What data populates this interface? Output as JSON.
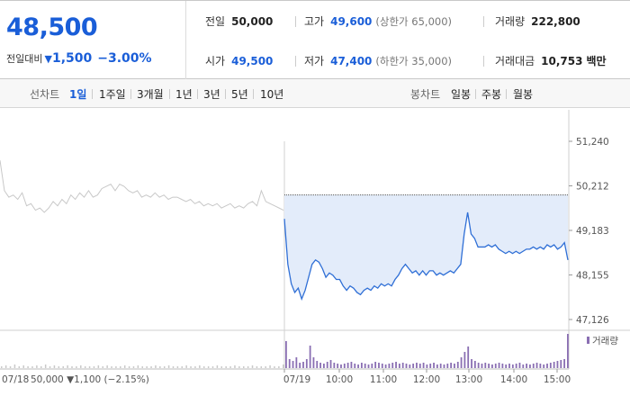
{
  "quote": {
    "price": "48,500",
    "change_label": "전일대비",
    "change_arrow": "▼",
    "change_value": "1,500",
    "change_pct": "−3.00%",
    "prev_close_label": "전일",
    "prev_close": "50,000",
    "high_label": "고가",
    "high": "49,600",
    "upper_limit": "(상한가 65,000)",
    "volume_label": "거래량",
    "volume": "222,800",
    "open_label": "시가",
    "open": "49,500",
    "low_label": "저가",
    "low": "47,400",
    "lower_limit": "(하한가 35,000)",
    "amount_label": "거래대금",
    "amount": "10,753",
    "amount_unit": "백만"
  },
  "toolbar": {
    "line_label": "선차트",
    "line_options": [
      "1일",
      "1주일",
      "3개월",
      "1년",
      "3년",
      "5년",
      "10년"
    ],
    "line_active": "1일",
    "candle_label": "봉차트",
    "candle_options": [
      "일봉",
      "주봉",
      "월봉"
    ]
  },
  "colors": {
    "accent": "#1a5ed8",
    "price_line": "#2f6fd6",
    "area_fill": "#e3ecfa",
    "prev_day_line": "#c8c8c8",
    "volume_today": "#8a6fb3",
    "volume_prev": "#c9c9c9"
  },
  "chart_data": {
    "type": "line",
    "y_ticks": [
      "51,240",
      "50,212",
      "49,183",
      "48,155",
      "47,126"
    ],
    "ylim": [
      47126,
      51240
    ],
    "x_ticks": [
      "07/19",
      "10:00",
      "11:00",
      "12:00",
      "13:00",
      "14:00",
      "15:00"
    ],
    "prev_day_label": "07/18",
    "prev_day_summary": "50,000 ▼1,100 (−2.15%)",
    "volume_legend": "거래량",
    "reference_price": 50000,
    "series": [
      {
        "values": [
          50800,
          50100,
          49950,
          50000,
          49900,
          50050,
          49750,
          49800,
          49650,
          49700,
          49600,
          49700,
          49850,
          49750,
          49900,
          49800,
          50000,
          49900,
          50050,
          49950,
          50100,
          49950,
          50000,
          50150,
          50200,
          50250,
          50100,
          50250,
          50200,
          50100,
          50050,
          50100,
          49950,
          50000,
          49950,
          50050,
          49950,
          50000,
          49900,
          49950,
          49950,
          49900,
          49850,
          49900,
          49800,
          49850,
          49750,
          49800,
          49750,
          49800,
          49700,
          49750,
          49800,
          49700,
          49750,
          49700,
          49800,
          49850,
          49750,
          50100,
          49850,
          49800,
          49750,
          49700,
          49650
        ]
      },
      {
        "values": [
          49450,
          48400,
          47950,
          47750,
          47850,
          47600,
          47800,
          48100,
          48400,
          48500,
          48450,
          48300,
          48100,
          48200,
          48150,
          48050,
          48050,
          47900,
          47800,
          47900,
          47850,
          47750,
          47700,
          47800,
          47850,
          47800,
          47900,
          47850,
          47950,
          47900,
          47950,
          47900,
          48050,
          48150,
          48300,
          48400,
          48300,
          48200,
          48250,
          48150,
          48250,
          48150,
          48250,
          48250,
          48150,
          48200,
          48150,
          48200,
          48250,
          48200,
          48300,
          48400,
          49100,
          49600,
          49100,
          49000,
          48800,
          48800,
          48800,
          48850,
          48800,
          48850,
          48750,
          48700,
          48650,
          48700,
          48650,
          48700,
          48650,
          48700,
          48750,
          48750,
          48800,
          48750,
          48800,
          48750,
          48850,
          48800,
          48850,
          48750,
          48800,
          48900,
          48500
        ]
      }
    ],
    "volume": {
      "prev_day": [
        2,
        3,
        2,
        4,
        2,
        3,
        2,
        2,
        3,
        2,
        4,
        2,
        3,
        2,
        2,
        3,
        2,
        2,
        3,
        2,
        2,
        2,
        3,
        2,
        3,
        2,
        2,
        2,
        3,
        2,
        2,
        3,
        2,
        2,
        2,
        3,
        2,
        2,
        3,
        2,
        2,
        2,
        3,
        2,
        2,
        3,
        2,
        2,
        2,
        3,
        2,
        2,
        2,
        3,
        2,
        2,
        2,
        3,
        2,
        2,
        2,
        3,
        2,
        2,
        4
      ],
      "today": [
        30,
        10,
        8,
        12,
        6,
        7,
        10,
        25,
        12,
        8,
        6,
        5,
        7,
        9,
        6,
        5,
        4,
        5,
        6,
        7,
        5,
        4,
        6,
        5,
        4,
        5,
        7,
        6,
        5,
        4,
        5,
        6,
        7,
        5,
        6,
        5,
        4,
        5,
        6,
        5,
        6,
        4,
        5,
        6,
        4,
        5,
        4,
        5,
        6,
        5,
        7,
        12,
        18,
        24,
        10,
        8,
        6,
        5,
        6,
        5,
        4,
        5,
        6,
        5,
        4,
        5,
        4,
        5,
        6,
        4,
        5,
        4,
        5,
        6,
        5,
        4,
        5,
        6,
        7,
        8,
        9,
        10,
        38
      ]
    }
  }
}
